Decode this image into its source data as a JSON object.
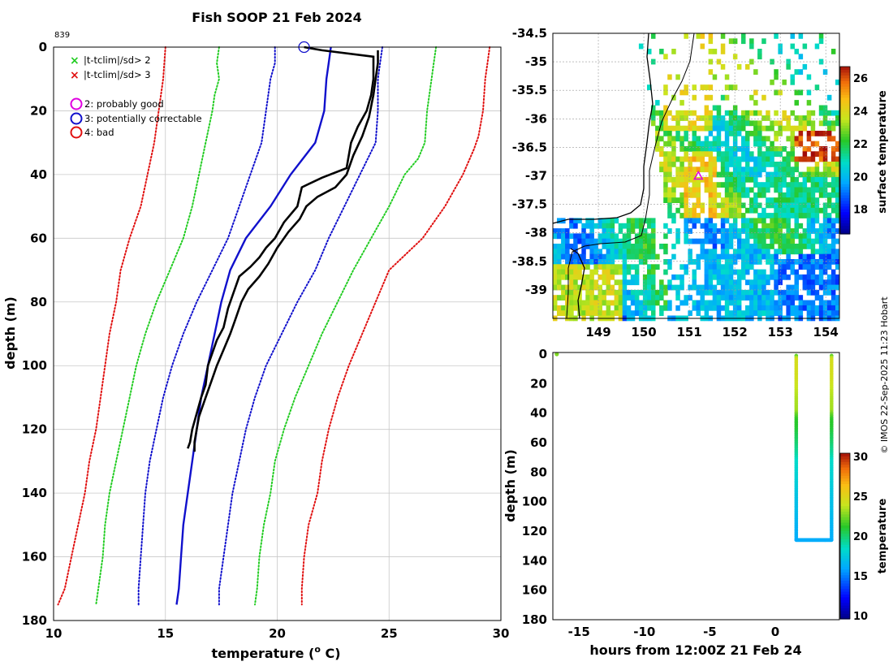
{
  "page_title": "Fish SOOP 21 Feb 2024",
  "profile_id": "839",
  "credit": "© IMOS 22-Sep-2025 11:23 Hobart",
  "colors": {
    "red": "#e01010",
    "green": "#22cc22",
    "blue": "#1010cc",
    "black": "#000000",
    "grid": "#c8c8c8"
  },
  "chart_data": [
    {
      "type": "line",
      "name": "profile",
      "xlabel": "temperature (",
      "xlabel_sup": "o",
      "xlabel_end": " C)",
      "ylabel": "depth (m)",
      "xlim": [
        10,
        30
      ],
      "ylim": [
        180,
        0
      ],
      "xticks": [
        10,
        15,
        20,
        25,
        30
      ],
      "yticks": [
        0,
        20,
        40,
        60,
        80,
        100,
        120,
        140,
        160,
        180
      ],
      "grid": true,
      "legend": {
        "flag2": "|t-tclim|/sd> 2",
        "flag3": "|t-tclim|/sd> 3",
        "q2": "2: probably good",
        "q3": "3: potentially correctable",
        "q4": "4: bad"
      },
      "series": [
        {
          "name": "clim-3sd-low",
          "color": "red",
          "style": "dotted",
          "points": [
            [
              15.0,
              0
            ],
            [
              14.9,
              10
            ],
            [
              14.7,
              20
            ],
            [
              14.5,
              30
            ],
            [
              14.2,
              40
            ],
            [
              13.9,
              50
            ],
            [
              13.4,
              60
            ],
            [
              13.0,
              70
            ],
            [
              12.8,
              80
            ],
            [
              12.5,
              90
            ],
            [
              12.3,
              100
            ],
            [
              12.1,
              110
            ],
            [
              11.9,
              120
            ],
            [
              11.6,
              130
            ],
            [
              11.4,
              140
            ],
            [
              11.1,
              150
            ],
            [
              10.8,
              160
            ],
            [
              10.5,
              170
            ],
            [
              10.2,
              175
            ]
          ]
        },
        {
          "name": "clim-2sd-low",
          "color": "green",
          "style": "dotted",
          "points": [
            [
              17.4,
              0
            ],
            [
              17.3,
              5
            ],
            [
              17.4,
              10
            ],
            [
              17.2,
              15
            ],
            [
              17.1,
              20
            ],
            [
              16.8,
              30
            ],
            [
              16.5,
              40
            ],
            [
              16.2,
              50
            ],
            [
              15.8,
              60
            ],
            [
              15.2,
              70
            ],
            [
              14.6,
              80
            ],
            [
              14.1,
              90
            ],
            [
              13.7,
              100
            ],
            [
              13.4,
              110
            ],
            [
              13.1,
              120
            ],
            [
              12.8,
              130
            ],
            [
              12.5,
              140
            ],
            [
              12.3,
              150
            ],
            [
              12.2,
              160
            ],
            [
              12.0,
              170
            ],
            [
              11.9,
              175
            ]
          ]
        },
        {
          "name": "clim-sd-low",
          "color": "blue",
          "style": "dotted",
          "points": [
            [
              19.9,
              0
            ],
            [
              19.9,
              5
            ],
            [
              19.7,
              10
            ],
            [
              19.5,
              20
            ],
            [
              19.3,
              30
            ],
            [
              18.8,
              40
            ],
            [
              18.3,
              50
            ],
            [
              17.8,
              60
            ],
            [
              17.1,
              70
            ],
            [
              16.4,
              80
            ],
            [
              15.8,
              90
            ],
            [
              15.3,
              100
            ],
            [
              14.9,
              110
            ],
            [
              14.6,
              120
            ],
            [
              14.3,
              130
            ],
            [
              14.1,
              140
            ],
            [
              14.0,
              150
            ],
            [
              13.9,
              160
            ],
            [
              13.8,
              170
            ],
            [
              13.8,
              175
            ]
          ]
        },
        {
          "name": "clim-sd-high",
          "color": "blue",
          "style": "dotted",
          "points": [
            [
              24.7,
              0
            ],
            [
              24.6,
              5
            ],
            [
              24.5,
              10
            ],
            [
              24.5,
              20
            ],
            [
              24.4,
              30
            ],
            [
              23.7,
              40
            ],
            [
              23.0,
              50
            ],
            [
              22.3,
              60
            ],
            [
              21.7,
              70
            ],
            [
              20.9,
              80
            ],
            [
              20.2,
              90
            ],
            [
              19.5,
              100
            ],
            [
              19.0,
              110
            ],
            [
              18.6,
              120
            ],
            [
              18.3,
              130
            ],
            [
              18.0,
              140
            ],
            [
              17.8,
              150
            ],
            [
              17.6,
              160
            ],
            [
              17.4,
              170
            ],
            [
              17.4,
              175
            ]
          ]
        },
        {
          "name": "clim-2sd-high",
          "color": "green",
          "style": "dotted",
          "points": [
            [
              27.1,
              0
            ],
            [
              27.0,
              5
            ],
            [
              26.9,
              10
            ],
            [
              26.7,
              20
            ],
            [
              26.6,
              30
            ],
            [
              26.3,
              35
            ],
            [
              25.7,
              40
            ],
            [
              25.0,
              50
            ],
            [
              24.2,
              60
            ],
            [
              23.4,
              70
            ],
            [
              22.7,
              80
            ],
            [
              22.0,
              90
            ],
            [
              21.4,
              100
            ],
            [
              20.8,
              110
            ],
            [
              20.3,
              120
            ],
            [
              19.9,
              130
            ],
            [
              19.7,
              140
            ],
            [
              19.4,
              150
            ],
            [
              19.2,
              160
            ],
            [
              19.1,
              170
            ],
            [
              19.0,
              175
            ]
          ]
        },
        {
          "name": "clim-3sd-high",
          "color": "red",
          "style": "dotted",
          "points": [
            [
              29.5,
              0
            ],
            [
              29.4,
              5
            ],
            [
              29.3,
              10
            ],
            [
              29.2,
              20
            ],
            [
              29.0,
              28
            ],
            [
              28.8,
              32
            ],
            [
              28.3,
              40
            ],
            [
              27.5,
              50
            ],
            [
              26.5,
              60
            ],
            [
              25.0,
              70
            ],
            [
              24.4,
              80
            ],
            [
              23.8,
              90
            ],
            [
              23.2,
              100
            ],
            [
              22.7,
              110
            ],
            [
              22.3,
              120
            ],
            [
              22.0,
              130
            ],
            [
              21.8,
              140
            ],
            [
              21.4,
              150
            ],
            [
              21.2,
              160
            ],
            [
              21.1,
              170
            ],
            [
              21.1,
              175
            ]
          ]
        },
        {
          "name": "nearest-profile",
          "color": "blue",
          "style": "solid",
          "points": [
            [
              22.4,
              0
            ],
            [
              22.3,
              5
            ],
            [
              22.2,
              10
            ],
            [
              22.1,
              20
            ],
            [
              21.7,
              30
            ],
            [
              20.6,
              40
            ],
            [
              19.7,
              50
            ],
            [
              18.6,
              60
            ],
            [
              17.9,
              70
            ],
            [
              17.5,
              80
            ],
            [
              17.2,
              90
            ],
            [
              16.9,
              100
            ],
            [
              16.6,
              110
            ],
            [
              16.4,
              120
            ],
            [
              16.2,
              130
            ],
            [
              16.0,
              140
            ],
            [
              15.8,
              150
            ],
            [
              15.7,
              160
            ],
            [
              15.6,
              170
            ],
            [
              15.5,
              175
            ]
          ]
        },
        {
          "name": "xbt-profile-a",
          "color": "black",
          "style": "solid",
          "points": [
            [
              21.2,
              0
            ],
            [
              22.0,
              1
            ],
            [
              24.3,
              3
            ],
            [
              24.3,
              10
            ],
            [
              24.2,
              15
            ],
            [
              24.0,
              20
            ],
            [
              23.6,
              25
            ],
            [
              23.3,
              30
            ],
            [
              23.1,
              38
            ],
            [
              22.0,
              41
            ],
            [
              21.1,
              44
            ],
            [
              20.9,
              50
            ],
            [
              20.3,
              55
            ],
            [
              19.9,
              60
            ],
            [
              19.5,
              63
            ],
            [
              19.2,
              66
            ],
            [
              18.8,
              69
            ],
            [
              18.3,
              72
            ],
            [
              18.0,
              78
            ],
            [
              17.8,
              82
            ],
            [
              17.6,
              88
            ],
            [
              17.3,
              92
            ],
            [
              17.1,
              96
            ],
            [
              16.9,
              100
            ],
            [
              16.8,
              106
            ],
            [
              16.6,
              110
            ],
            [
              16.4,
              115
            ],
            [
              16.2,
              120
            ],
            [
              16.1,
              124
            ],
            [
              16.0,
              126
            ]
          ]
        },
        {
          "name": "xbt-profile-b",
          "color": "black",
          "style": "solid",
          "points": [
            [
              24.5,
              1
            ],
            [
              24.5,
              5
            ],
            [
              24.4,
              10
            ],
            [
              24.3,
              15
            ],
            [
              24.1,
              22
            ],
            [
              23.8,
              28
            ],
            [
              23.4,
              34
            ],
            [
              23.1,
              40
            ],
            [
              22.6,
              44
            ],
            [
              21.8,
              47
            ],
            [
              21.3,
              50
            ],
            [
              21.0,
              54
            ],
            [
              20.5,
              58
            ],
            [
              20.0,
              63
            ],
            [
              19.6,
              68
            ],
            [
              19.2,
              72
            ],
            [
              18.7,
              76
            ],
            [
              18.4,
              80
            ],
            [
              18.1,
              86
            ],
            [
              17.9,
              90
            ],
            [
              17.6,
              95
            ],
            [
              17.3,
              100
            ],
            [
              17.1,
              104
            ],
            [
              16.8,
              110
            ],
            [
              16.5,
              116
            ],
            [
              16.4,
              120
            ],
            [
              16.3,
              124
            ],
            [
              16.3,
              127
            ]
          ]
        }
      ],
      "marker_circle": {
        "x": 21.2,
        "y": 0
      }
    },
    {
      "type": "heatmap",
      "name": "sst-map",
      "xlim": [
        148.0,
        154.3
      ],
      "ylim": [
        -39.5,
        -34.5
      ],
      "xticks": [
        149,
        150,
        151,
        152,
        153,
        154
      ],
      "yticks": [
        -34.5,
        -35,
        -35.5,
        -36,
        -36.5,
        -37,
        -37.5,
        -38,
        -38.5,
        -39
      ],
      "colorbar": {
        "label": "surface temperature",
        "range": [
          16.5,
          26.7
        ],
        "ticks": [
          18,
          20,
          22,
          24,
          26
        ]
      },
      "marker": {
        "lon": 151.2,
        "lat": -37.0
      }
    },
    {
      "type": "scatter",
      "name": "depth-time",
      "xlabel": "hours from 12:00Z 21 Feb 24",
      "ylabel": "depth (m)",
      "xlim": [
        -17,
        4.9
      ],
      "ylim": [
        180,
        0
      ],
      "xticks": [
        -15,
        -10,
        -5,
        0
      ],
      "yticks": [
        0,
        20,
        40,
        60,
        80,
        100,
        120,
        140,
        160,
        180
      ],
      "colorbar": {
        "label": "temperature",
        "range": [
          9.6,
          30.4
        ],
        "ticks": [
          10,
          15,
          20,
          25,
          30
        ]
      },
      "points": [
        {
          "x": -16.7,
          "y": 0,
          "t": 22.5
        }
      ],
      "traces": [
        {
          "name": "descent-1",
          "x": 1.6,
          "depth_max": 126
        },
        {
          "name": "bottom",
          "x0": 1.6,
          "x1": 4.3,
          "depth": 126
        },
        {
          "name": "ascent",
          "x": 4.3,
          "depth_max": 126
        }
      ]
    }
  ]
}
